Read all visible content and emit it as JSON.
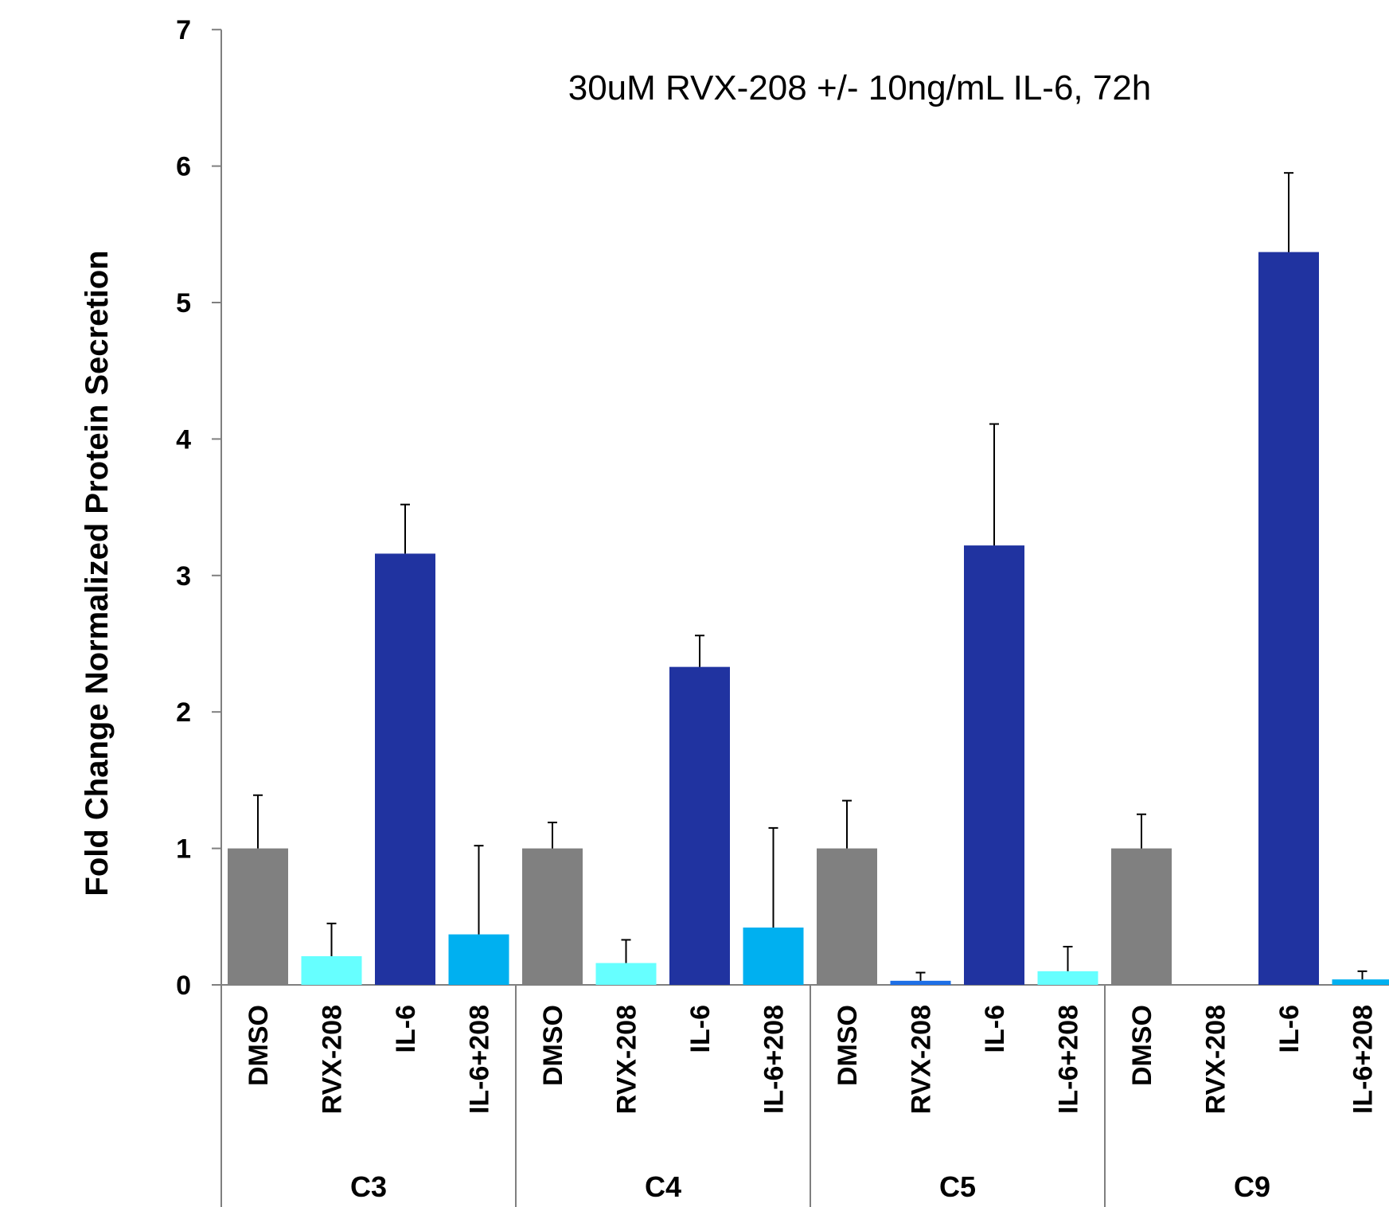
{
  "chart_data": {
    "type": "bar",
    "title": "30uM RVX-208 +/- 10ng/mL IL-6, 72h",
    "ylabel": "Fold Change Normalized Protein Secretion",
    "xlabel": "",
    "ylim": [
      0,
      7
    ],
    "yticks": [
      "0",
      "1",
      "2",
      "3",
      "4",
      "5",
      "6",
      "7"
    ],
    "grid": false,
    "legend": "none",
    "groups": [
      {
        "name": "C3",
        "bars": [
          {
            "label": "DMSO",
            "value": 1.0,
            "error": 0.39,
            "color": "#808080"
          },
          {
            "label": "RVX-208",
            "value": 0.21,
            "error": 0.24,
            "color": "#66FFFF"
          },
          {
            "label": "IL-6",
            "value": 3.16,
            "error": 0.36,
            "color": "#2033A0"
          },
          {
            "label": "IL-6+208",
            "value": 0.37,
            "error": 0.65,
            "color": "#00B0F0"
          }
        ]
      },
      {
        "name": "C4",
        "bars": [
          {
            "label": "DMSO",
            "value": 1.0,
            "error": 0.19,
            "color": "#808080"
          },
          {
            "label": "RVX-208",
            "value": 0.16,
            "error": 0.17,
            "color": "#66FFFF"
          },
          {
            "label": "IL-6",
            "value": 2.33,
            "error": 0.23,
            "color": "#2033A0"
          },
          {
            "label": "IL-6+208",
            "value": 0.42,
            "error": 0.73,
            "color": "#00B0F0"
          }
        ]
      },
      {
        "name": "C5",
        "bars": [
          {
            "label": "DMSO",
            "value": 1.0,
            "error": 0.35,
            "color": "#808080"
          },
          {
            "label": "RVX-208",
            "value": 0.03,
            "error": 0.06,
            "color": "#1E6FE6"
          },
          {
            "label": "IL-6",
            "value": 3.22,
            "error": 0.89,
            "color": "#2033A0"
          },
          {
            "label": "IL-6+208",
            "value": 0.1,
            "error": 0.18,
            "color": "#66FFFF"
          }
        ]
      },
      {
        "name": "C9",
        "bars": [
          {
            "label": "DMSO",
            "value": 1.0,
            "error": 0.25,
            "color": "#808080"
          },
          {
            "label": "RVX-208",
            "value": 0.0,
            "error": 0.0,
            "color": "#66FFFF"
          },
          {
            "label": "IL-6",
            "value": 5.37,
            "error": 0.58,
            "color": "#2033A0"
          },
          {
            "label": "IL-6+208",
            "value": 0.04,
            "error": 0.06,
            "color": "#00B0F0"
          }
        ]
      }
    ]
  }
}
